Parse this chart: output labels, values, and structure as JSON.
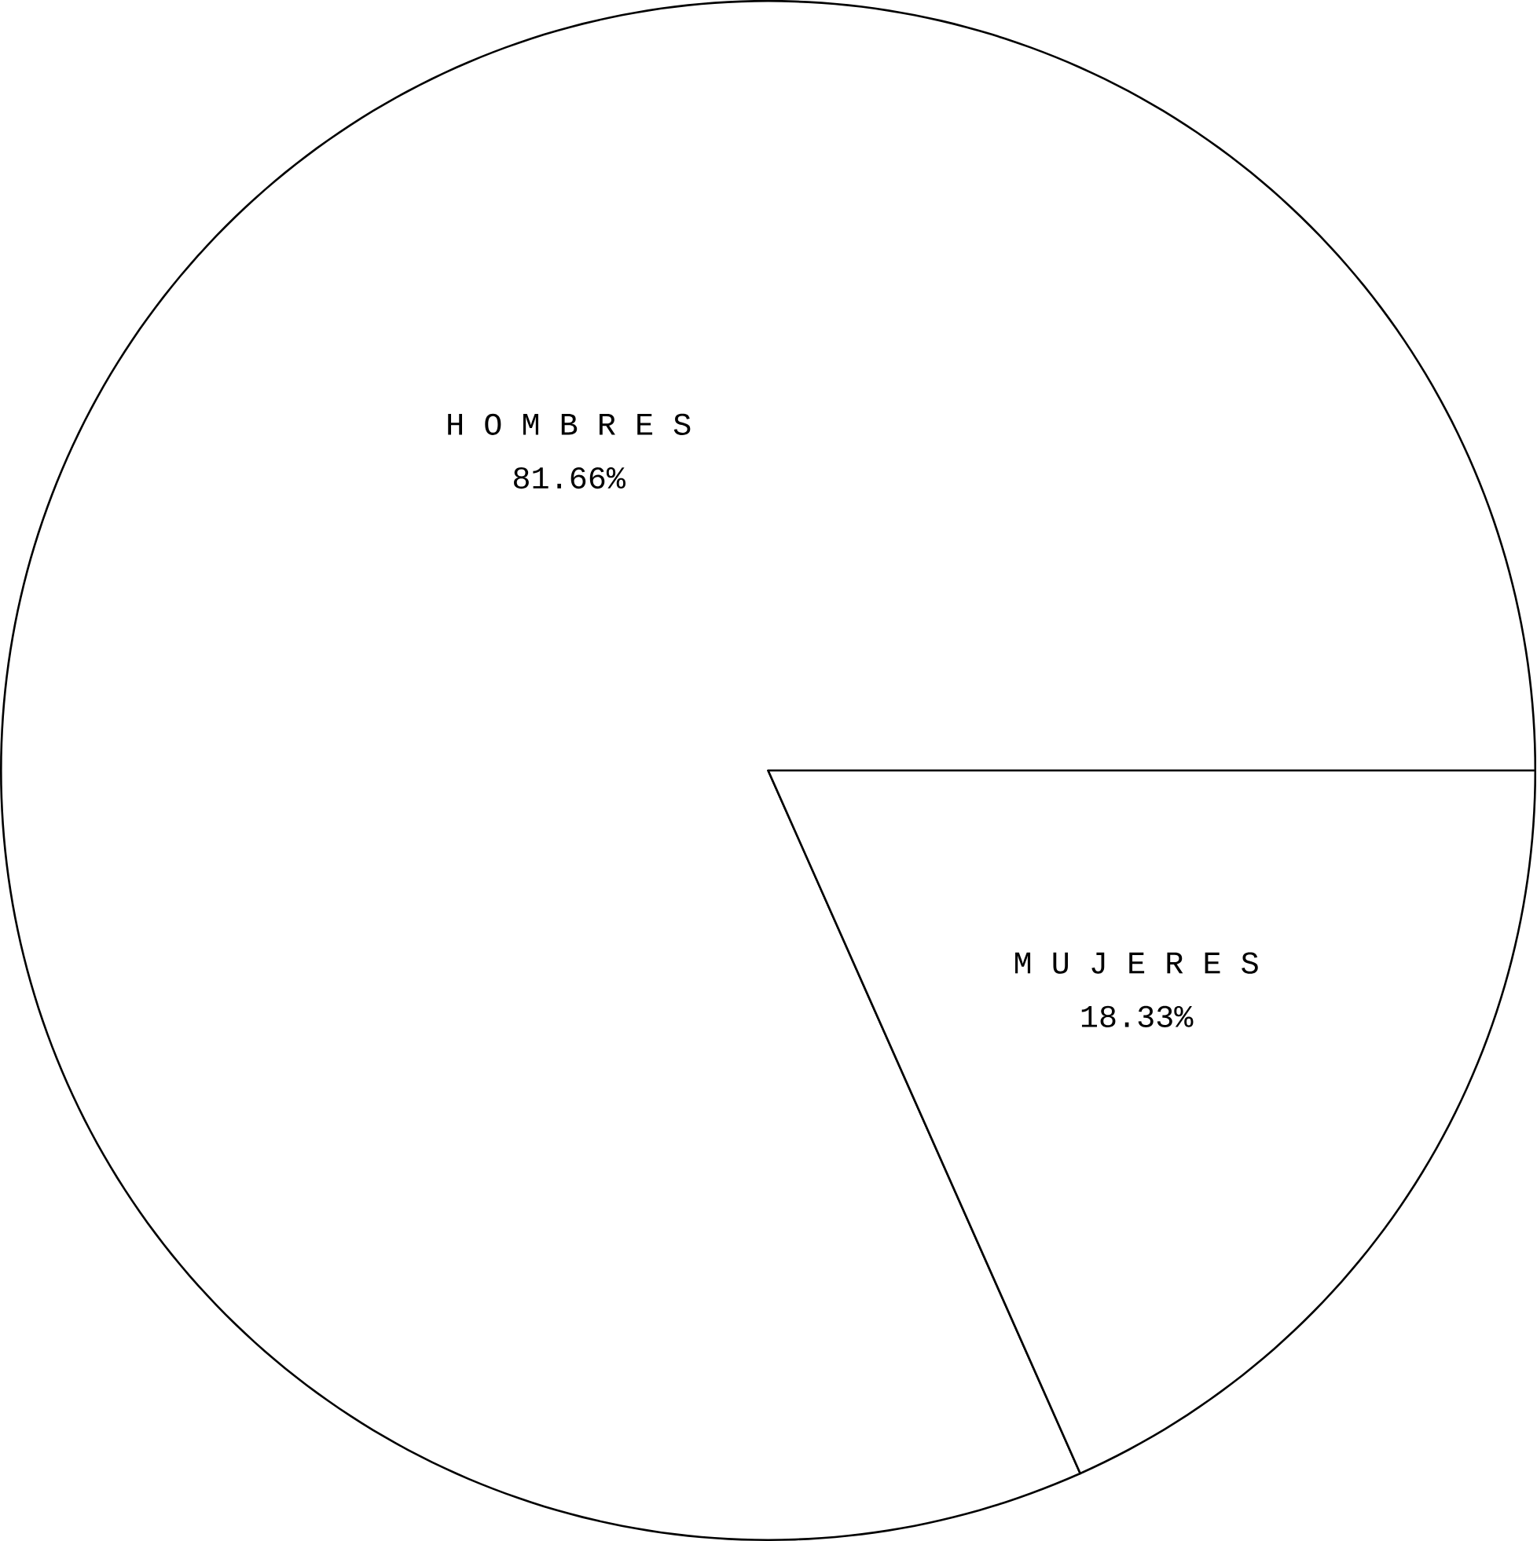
{
  "chart_data": {
    "type": "pie",
    "categories": [
      "H O M B R E S",
      "M U J E R E S"
    ],
    "values": [
      81.66,
      18.33
    ],
    "value_labels": [
      "81.66%",
      "18.33%"
    ],
    "colors": [
      "#ffffff",
      "#ffffff"
    ]
  }
}
